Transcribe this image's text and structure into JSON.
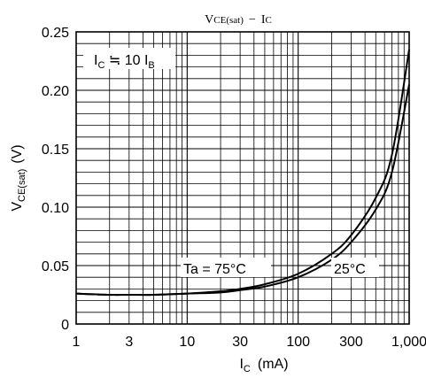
{
  "chart_data": {
    "type": "line",
    "title": "VCE(sat) − IC",
    "title_parts": {
      "a": "V",
      "a_sub": "CE(sat)",
      "dash": "−",
      "b": "I",
      "b_sub": "C"
    },
    "xlabel": {
      "main": "I",
      "sub": "C",
      "unit": "(mA)"
    },
    "ylabel": {
      "main": "V",
      "sub": "CE(sat)",
      "unit": "(V)"
    },
    "x_scale": "log",
    "xlim": [
      1,
      1000
    ],
    "ylim": [
      0,
      0.25
    ],
    "x_ticks": [
      1,
      3,
      10,
      30,
      100,
      300,
      1000
    ],
    "x_tick_labels": [
      "1",
      "3",
      "10",
      "30",
      "100",
      "300",
      "1,000"
    ],
    "y_ticks": [
      0,
      0.05,
      0.1,
      0.15,
      0.2,
      0.25
    ],
    "y_tick_labels": [
      "0",
      "0.05",
      "0.10",
      "0.15",
      "0.20",
      "0.25"
    ],
    "grid": true,
    "condition": {
      "pre": "I",
      "pre_sub": "C",
      "mid": " ≒ 10 I",
      "post_sub": "B"
    },
    "series": [
      {
        "name": "Ta = 75°C",
        "x": [
          1,
          2,
          3,
          5,
          10,
          20,
          30,
          50,
          100,
          200,
          300,
          500,
          700,
          1000
        ],
        "y": [
          0.026,
          0.025,
          0.025,
          0.025,
          0.026,
          0.028,
          0.03,
          0.034,
          0.043,
          0.06,
          0.076,
          0.108,
          0.145,
          0.235
        ]
      },
      {
        "name": "25°C",
        "x": [
          1,
          2,
          3,
          5,
          10,
          20,
          30,
          50,
          100,
          200,
          300,
          500,
          700,
          1000
        ],
        "y": [
          0.026,
          0.025,
          0.025,
          0.025,
          0.026,
          0.027,
          0.029,
          0.032,
          0.04,
          0.055,
          0.07,
          0.098,
          0.13,
          0.205
        ]
      }
    ],
    "annotations": {
      "series0_label": "Ta = 75°C",
      "series1_label": "25°C"
    }
  }
}
